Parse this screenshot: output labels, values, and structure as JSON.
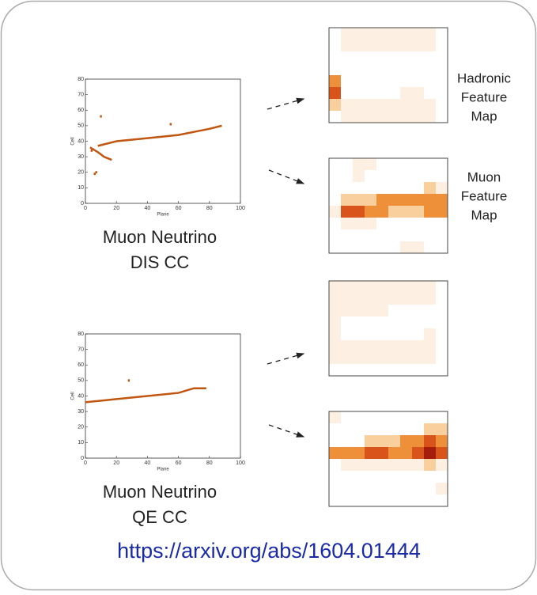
{
  "events": [
    {
      "title_lines": [
        "Muon Neutrino",
        "DIS CC"
      ],
      "xlabel": "Plane",
      "ylabel": "Cell",
      "xlim": [
        0,
        100
      ],
      "ylim": [
        0,
        80
      ],
      "xticks": [
        0,
        20,
        40,
        60,
        80,
        100
      ],
      "yticks": [
        0,
        10,
        20,
        30,
        40,
        50,
        60,
        70,
        80
      ],
      "color": "#c0560f",
      "tracks": [
        {
          "x": [
            8,
            20,
            40,
            60,
            80,
            88
          ],
          "y": [
            37,
            40,
            42,
            44,
            48,
            50
          ]
        },
        {
          "x": [
            3,
            8,
            12,
            17
          ],
          "y": [
            36,
            33,
            30,
            28
          ]
        }
      ],
      "hits": {
        "x": [
          10,
          55,
          7,
          6,
          4
        ],
        "y": [
          56,
          51,
          20,
          19,
          34
        ]
      }
    },
    {
      "title_lines": [
        "Muon Neutrino",
        "QE CC"
      ],
      "xlabel": "Plane",
      "ylabel": "Cell",
      "xlim": [
        0,
        100
      ],
      "ylim": [
        0,
        80
      ],
      "xticks": [
        0,
        20,
        40,
        60,
        80,
        100
      ],
      "yticks": [
        0,
        10,
        20,
        30,
        40,
        50,
        60,
        70,
        80
      ],
      "color": "#c0560f",
      "tracks": [
        {
          "x": [
            0,
            20,
            40,
            60,
            70,
            78
          ],
          "y": [
            36,
            38,
            40,
            42,
            45,
            45
          ]
        }
      ],
      "hits": {
        "x": [
          28
        ],
        "y": [
          50
        ]
      }
    }
  ],
  "palette": [
    "#ffffff",
    "#fdf0e2",
    "#f9cf9e",
    "#ee8f3a",
    "#d9541a",
    "#a51d0d"
  ],
  "feature_maps": [
    {
      "cells": [
        [
          0,
          1,
          1,
          1,
          1,
          1,
          1,
          1,
          1,
          0
        ],
        [
          0,
          1,
          1,
          1,
          1,
          1,
          1,
          1,
          1,
          0
        ],
        [
          0,
          0,
          0,
          0,
          0,
          0,
          0,
          0,
          0,
          0
        ],
        [
          0,
          0,
          0,
          0,
          0,
          0,
          0,
          0,
          0,
          0
        ],
        [
          3,
          0,
          0,
          0,
          0,
          0,
          0,
          0,
          0,
          0
        ],
        [
          4,
          0,
          0,
          0,
          0,
          0,
          1,
          1,
          0,
          0
        ],
        [
          2,
          1,
          1,
          1,
          1,
          1,
          1,
          1,
          1,
          0
        ],
        [
          0,
          1,
          1,
          1,
          1,
          1,
          1,
          1,
          1,
          0
        ]
      ]
    },
    {
      "cells": [
        [
          0,
          0,
          1,
          1,
          0,
          0,
          0,
          0,
          0,
          0
        ],
        [
          0,
          0,
          1,
          0,
          0,
          0,
          0,
          0,
          0,
          0
        ],
        [
          0,
          0,
          0,
          0,
          0,
          0,
          0,
          0,
          2,
          1
        ],
        [
          0,
          2,
          2,
          2,
          3,
          3,
          3,
          3,
          3,
          3
        ],
        [
          1,
          4,
          4,
          3,
          3,
          2,
          2,
          2,
          3,
          3
        ],
        [
          0,
          1,
          1,
          1,
          0,
          0,
          0,
          0,
          0,
          0
        ],
        [
          0,
          0,
          0,
          0,
          0,
          0,
          0,
          0,
          0,
          0
        ],
        [
          0,
          0,
          0,
          0,
          0,
          0,
          1,
          1,
          0,
          0
        ]
      ]
    },
    {
      "cells": [
        [
          1,
          1,
          1,
          1,
          1,
          1,
          1,
          1,
          1,
          0
        ],
        [
          1,
          1,
          1,
          1,
          1,
          1,
          1,
          1,
          1,
          0
        ],
        [
          1,
          1,
          1,
          1,
          1,
          0,
          0,
          0,
          0,
          0
        ],
        [
          1,
          0,
          0,
          0,
          0,
          0,
          0,
          0,
          0,
          0
        ],
        [
          1,
          0,
          0,
          0,
          0,
          0,
          0,
          0,
          1,
          0
        ],
        [
          1,
          1,
          1,
          1,
          1,
          1,
          1,
          1,
          1,
          0
        ],
        [
          1,
          1,
          1,
          1,
          1,
          1,
          1,
          1,
          1,
          0
        ],
        [
          0,
          0,
          0,
          0,
          0,
          0,
          0,
          0,
          0,
          0
        ]
      ]
    },
    {
      "cells": [
        [
          1,
          0,
          0,
          0,
          0,
          0,
          0,
          0,
          0,
          0
        ],
        [
          0,
          0,
          0,
          0,
          0,
          0,
          0,
          0,
          2,
          2
        ],
        [
          0,
          0,
          0,
          2,
          2,
          2,
          3,
          3,
          4,
          3
        ],
        [
          3,
          3,
          3,
          4,
          4,
          3,
          3,
          4,
          5,
          4
        ],
        [
          0,
          1,
          1,
          1,
          1,
          1,
          1,
          1,
          2,
          1
        ],
        [
          0,
          0,
          0,
          0,
          0,
          0,
          0,
          0,
          0,
          0
        ],
        [
          0,
          0,
          0,
          0,
          0,
          0,
          0,
          0,
          0,
          1
        ],
        [
          0,
          0,
          0,
          0,
          0,
          0,
          0,
          0,
          0,
          0
        ]
      ]
    }
  ],
  "map_labels": [
    {
      "lines": [
        "Hadronic",
        "Feature",
        "Map"
      ]
    },
    {
      "lines": [
        "Muon",
        "Feature",
        "Map"
      ]
    }
  ],
  "url": "https://arxiv.org/abs/1604.01444"
}
